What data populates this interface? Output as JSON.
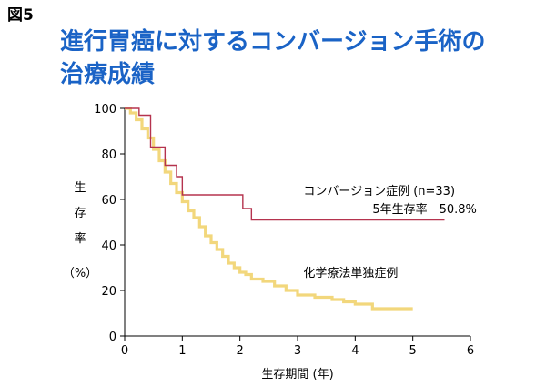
{
  "figure_label": "図5",
  "title_lines": [
    "進行胃癌に対するコンバージョン手術の",
    "治療成績"
  ],
  "chart_data": {
    "type": "line",
    "step": true,
    "xlabel": "生存期間 (年)",
    "ylabel_chars": [
      "生",
      "存",
      "率"
    ],
    "ylabel_unit": "（%）",
    "xlim": [
      0,
      6
    ],
    "ylim": [
      0,
      100
    ],
    "xticks": [
      "0",
      "1",
      "2",
      "3",
      "4",
      "5",
      "6"
    ],
    "yticks": [
      "0",
      "20",
      "40",
      "60",
      "80",
      "100"
    ],
    "grid": false,
    "series": [
      {
        "name": "コンバージョン症例 (n=33)",
        "color": "#b5334e",
        "x": [
          0,
          0.25,
          0.45,
          0.7,
          0.9,
          1.0,
          2.05,
          2.2,
          5.55
        ],
        "y": [
          100,
          97,
          83,
          75,
          70,
          62,
          56,
          51,
          51
        ]
      },
      {
        "name": "化学療法単独症例",
        "color": "#f2d77c",
        "x": [
          0,
          0.1,
          0.2,
          0.3,
          0.4,
          0.5,
          0.6,
          0.7,
          0.8,
          0.9,
          1.0,
          1.1,
          1.2,
          1.3,
          1.4,
          1.5,
          1.6,
          1.7,
          1.8,
          1.9,
          2.0,
          2.1,
          2.2,
          2.4,
          2.6,
          2.8,
          3.0,
          3.3,
          3.6,
          3.8,
          4.0,
          4.3,
          4.6,
          5.0
        ],
        "y": [
          100,
          98,
          95,
          91,
          87,
          82,
          77,
          72,
          67,
          63,
          59,
          55,
          52,
          48,
          44,
          41,
          38,
          35,
          32,
          30,
          28,
          27,
          25,
          24,
          22,
          20,
          18,
          17,
          16,
          15,
          14,
          12,
          12,
          12
        ]
      }
    ],
    "annotations": [
      {
        "text": "コンバージョン症例 (n=33)",
        "x": 3.1,
        "y": 62
      },
      {
        "text": "5年生存率　50.8%",
        "x": 4.3,
        "y": 54
      },
      {
        "text": "化学療法単独症例",
        "x": 3.1,
        "y": 26
      }
    ]
  }
}
